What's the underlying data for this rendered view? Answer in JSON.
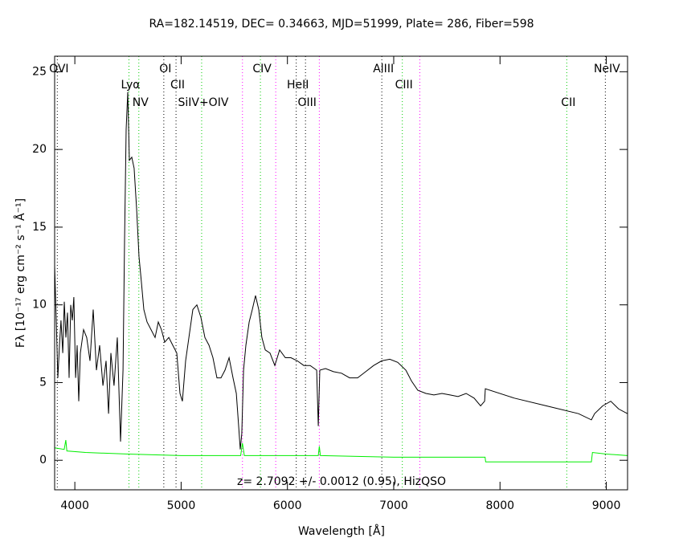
{
  "chart_data": {
    "type": "line",
    "title": "RA=182.14519, DEC= 0.34663, MJD=51999, Plate= 286, Fiber=598",
    "annotation": "z= 2.7092 +/- 0.0012 (0.95), HizQSO",
    "xlabel": "Wavelength [Å]",
    "ylabel": "Fλ [10⁻¹⁷ erg cm⁻² s⁻¹ Å⁻¹]",
    "xlim": [
      3810,
      9200
    ],
    "ylim": [
      -1.9,
      26
    ],
    "xticks": [
      4000,
      5000,
      6000,
      7000,
      8000,
      9000
    ],
    "yticks": [
      0,
      5,
      10,
      15,
      20,
      25
    ],
    "series": [
      {
        "color": "#000000",
        "x": [
          3810,
          3825,
          3840,
          3855,
          3870,
          3886,
          3901,
          3916,
          3931,
          3946,
          3961,
          3976,
          3991,
          4007,
          4022,
          4037,
          4052,
          4082,
          4112,
          4143,
          4173,
          4203,
          4233,
          4264,
          4294,
          4317,
          4339,
          4369,
          4400,
          4430,
          4453,
          4468,
          4483,
          4498,
          4513,
          4536,
          4558,
          4581,
          4604,
          4626,
          4649,
          4679,
          4717,
          4755,
          4785,
          4815,
          4846,
          4884,
          4921,
          4959,
          4989,
          5012,
          5042,
          5073,
          5110,
          5148,
          5186,
          5224,
          5262,
          5299,
          5337,
          5375,
          5413,
          5451,
          5488,
          5519,
          5541,
          5556,
          5571,
          5587,
          5609,
          5640,
          5670,
          5700,
          5730,
          5760,
          5791,
          5836,
          5881,
          5927,
          5980,
          6033,
          6093,
          6154,
          6214,
          6275,
          6290,
          6305,
          6358,
          6433,
          6509,
          6585,
          6660,
          6736,
          6811,
          6887,
          6963,
          7038,
          7114,
          7167,
          7227,
          7303,
          7378,
          7454,
          7530,
          7605,
          7681,
          7756,
          7817,
          7855,
          7862,
          8134,
          8437,
          8739,
          8860,
          8890,
          8966,
          9042,
          9117,
          9200
        ],
        "values": [
          12.5,
          9,
          5.3,
          7.4,
          9,
          6.9,
          10.2,
          7.9,
          9.5,
          5.3,
          10,
          9,
          10.5,
          5.3,
          7.4,
          3.8,
          6.9,
          8.4,
          7.9,
          6.4,
          9.7,
          5.8,
          7.4,
          4.8,
          6.4,
          3.0,
          6.9,
          4.8,
          7.9,
          1.2,
          5.8,
          14.1,
          21.3,
          23.7,
          19.3,
          19.5,
          18.8,
          16.2,
          13.1,
          11.5,
          9.7,
          8.9,
          8.4,
          7.9,
          8.9,
          8.4,
          7.6,
          7.9,
          7.4,
          6.9,
          4.3,
          3.8,
          6.4,
          7.9,
          9.7,
          10,
          9.2,
          7.9,
          7.4,
          6.6,
          5.3,
          5.3,
          5.8,
          6.6,
          5.3,
          4.3,
          2.2,
          0.7,
          1.7,
          5.8,
          7.4,
          8.9,
          9.7,
          10.6,
          9.7,
          7.9,
          7.1,
          6.9,
          6.1,
          7.1,
          6.6,
          6.6,
          6.4,
          6.1,
          6.1,
          5.8,
          2.2,
          5.8,
          5.9,
          5.7,
          5.6,
          5.3,
          5.3,
          5.7,
          6.1,
          6.4,
          6.5,
          6.3,
          5.8,
          5.1,
          4.5,
          4.3,
          4.2,
          4.3,
          4.2,
          4.1,
          4.3,
          4.0,
          3.5,
          3.8,
          4.6,
          4.0,
          3.5,
          3.0,
          2.6,
          3.0,
          3.5,
          3.8,
          3.3,
          3.0
        ]
      },
      {
        "color": "#00ee00",
        "x": [
          3810,
          3900,
          3915,
          3925,
          4100,
          4500,
          5000,
          5560,
          5577,
          5595,
          6290,
          6300,
          6310,
          7000,
          7600,
          7860,
          7865,
          8860,
          8870,
          9000,
          9200
        ],
        "values": [
          0.8,
          0.7,
          1.3,
          0.6,
          0.5,
          0.4,
          0.3,
          0.3,
          1.1,
          0.3,
          0.3,
          0.9,
          0.3,
          0.2,
          0.2,
          0.2,
          -0.1,
          -0.1,
          0.5,
          0.4,
          0.3
        ]
      }
    ],
    "lines": [
      {
        "label": "OVI",
        "wavelength": 3835,
        "color": "#000000"
      },
      {
        "label": "Lyα",
        "wavelength": 4509,
        "color": "#00cc00"
      },
      {
        "label": "NV",
        "wavelength": 4602,
        "color": "#00cc00"
      },
      {
        "label": "OI",
        "wavelength": 4837,
        "color": "#000000"
      },
      {
        "label": "CII",
        "wavelength": 4952,
        "color": "#000000"
      },
      {
        "label": "SiIV+OIV",
        "wavelength": 5193,
        "color": "#00cc00"
      },
      {
        "label": "CIV",
        "wavelength": 5746,
        "color": "#00cc00"
      },
      {
        "label": "HeII",
        "wavelength": 6083,
        "color": "#000000"
      },
      {
        "label": "OIII",
        "wavelength": 6170,
        "color": "#000000"
      },
      {
        "label": "AlIII",
        "wavelength": 6888,
        "color": "#000000"
      },
      {
        "label": "CIII",
        "wavelength": 7081,
        "color": "#00cc00"
      },
      {
        "label": "CII",
        "wavelength": 8628,
        "color": "#00cc00"
      },
      {
        "label": "NeIV",
        "wavelength": 8991,
        "color": "#000000"
      }
    ],
    "sky_lines": {
      "color": "#ff00ff",
      "wavelengths": [
        5577,
        5890,
        6300,
        7246
      ]
    }
  }
}
